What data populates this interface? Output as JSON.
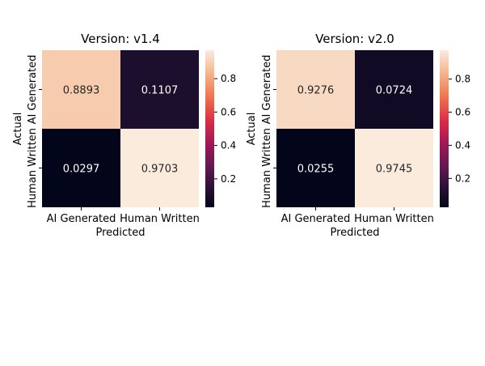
{
  "chart_data": [
    {
      "type": "heatmap",
      "title": "Version: v1.4",
      "xlabel": "Predicted",
      "ylabel": "Actual",
      "x_categories": [
        "AI Generated",
        "Human Written"
      ],
      "y_categories": [
        "AI Generated",
        "Human Written"
      ],
      "values": [
        [
          0.8893,
          0.1107
        ],
        [
          0.0297,
          0.9703
        ]
      ],
      "cell_labels": [
        [
          "0.8893",
          "0.1107"
        ],
        [
          "0.0297",
          "0.9703"
        ]
      ],
      "colorbar": {
        "range": [
          0.0297,
          0.9703
        ],
        "ticks": [
          0.2,
          0.4,
          0.6,
          0.8
        ],
        "tick_labels": [
          "0.2",
          "0.4",
          "0.6",
          "0.8"
        ]
      },
      "colormap": "rocket"
    },
    {
      "type": "heatmap",
      "title": "Version: v2.0",
      "xlabel": "Predicted",
      "ylabel": "Actual",
      "x_categories": [
        "AI Generated",
        "Human Written"
      ],
      "y_categories": [
        "AI Generated",
        "Human Written"
      ],
      "values": [
        [
          0.9276,
          0.0724
        ],
        [
          0.0255,
          0.9745
        ]
      ],
      "cell_labels": [
        [
          "0.9276",
          "0.0724"
        ],
        [
          "0.0255",
          "0.9745"
        ]
      ],
      "colorbar": {
        "range": [
          0.0255,
          0.9745
        ],
        "ticks": [
          0.2,
          0.4,
          0.6,
          0.8
        ],
        "tick_labels": [
          "0.2",
          "0.4",
          "0.6",
          "0.8"
        ]
      },
      "colormap": "rocket"
    }
  ]
}
